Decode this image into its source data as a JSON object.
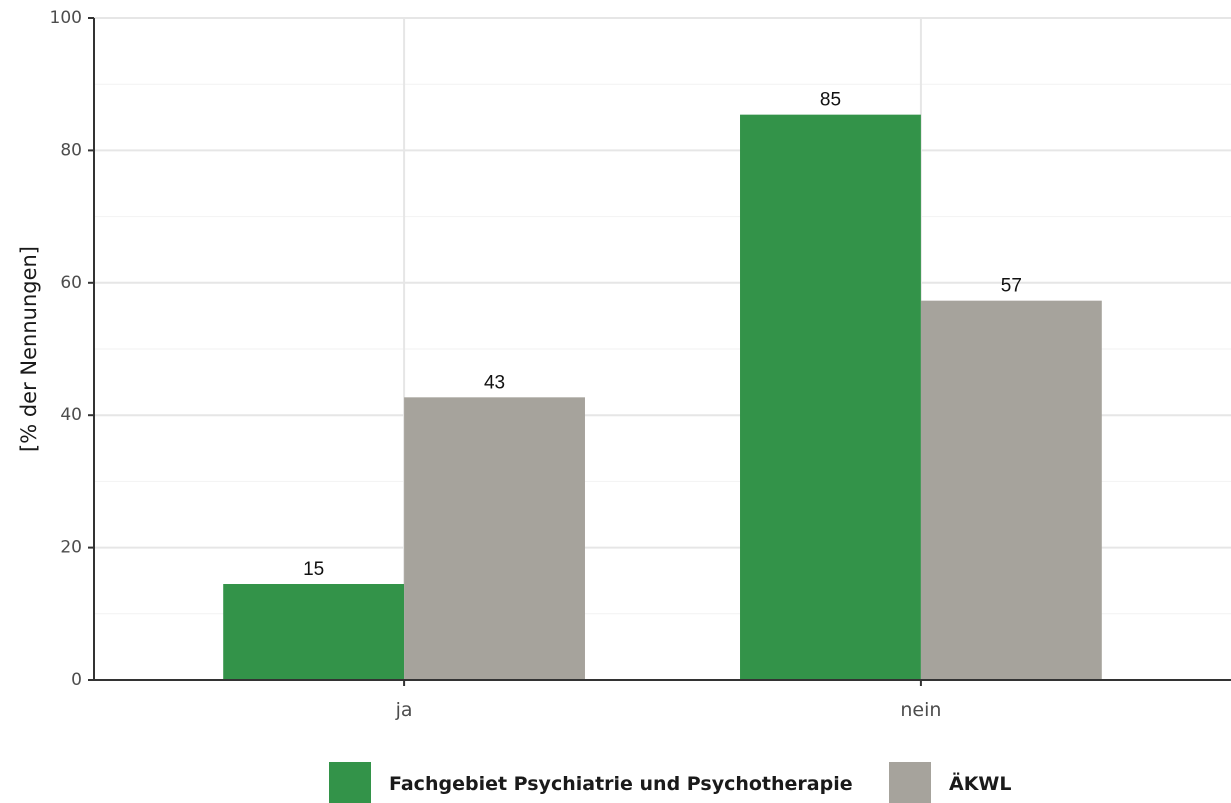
{
  "colors": {
    "series_1": "#339349",
    "series_2": "#a6a39c",
    "grid_major": "#e6e6e6",
    "grid_minor": "#f2f2f2",
    "axis": "#333333"
  },
  "chart_data": {
    "type": "bar",
    "categories": [
      "ja",
      "nein"
    ],
    "series": [
      {
        "name": "Fachgebiet Psychiatrie und Psychotherapie",
        "values": [
          14.5,
          85.4
        ],
        "labels": [
          "15",
          "85"
        ]
      },
      {
        "name": "ÄKWL",
        "values": [
          42.7,
          57.3
        ],
        "labels": [
          "43",
          "57"
        ]
      }
    ],
    "title": "",
    "xlabel": "",
    "ylabel": "[% der Nennungen]",
    "ylim": [
      0,
      100
    ],
    "yticks": [
      0,
      20,
      40,
      60,
      80,
      100
    ],
    "grid": true,
    "legend_position": "bottom"
  }
}
